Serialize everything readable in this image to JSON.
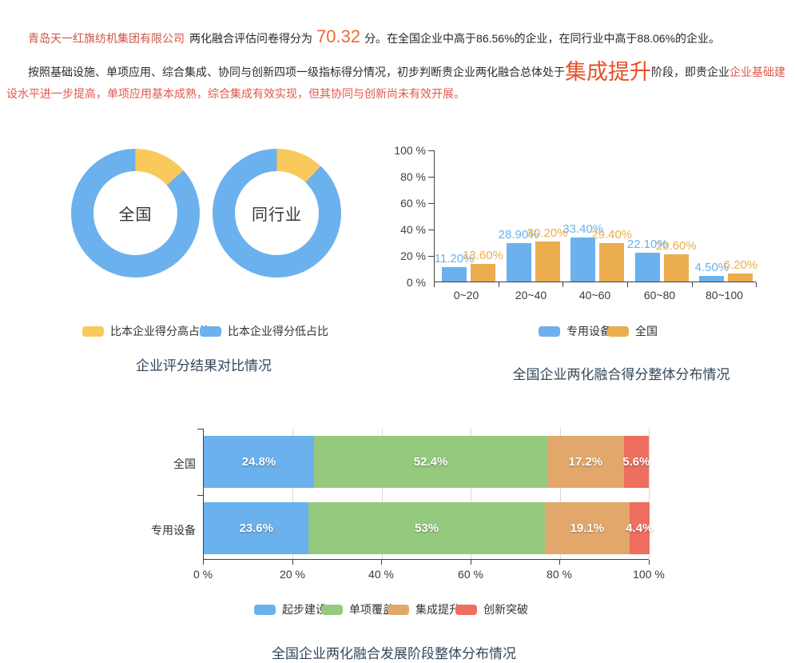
{
  "header": {
    "company": "青岛天一红旗纺机集团有限公司",
    "score_prefix": "两化融合评估问卷得分为",
    "score": "70.32",
    "score_unit": "分。",
    "score_suffix": "在全国企业中高于86.56%的企业，在同行业中高于88.06%的企业。",
    "para_black": "按照基础设施、单项应用、综合集成、协同与创新四项一级指标得分情况，初步判断贵企业两化融合总体处于",
    "para_stage": "集成提升",
    "para_mid": "阶段，即贵企业",
    "para_red": "企业基础建设水平进一步提高，单项应用基本成熟，综合集成有效实现，但其协同与创新尚未有效开展。"
  },
  "chart_data": [
    {
      "type": "pie",
      "title": "企业评分结果对比情况",
      "donuts": [
        {
          "label": "全国",
          "slices": [
            {
              "name": "比本企业得分高占比",
              "value": 13.44
            },
            {
              "name": "比本企业得分低占比",
              "value": 86.56
            }
          ]
        },
        {
          "label": "同行业",
          "slices": [
            {
              "name": "比本企业得分高占比",
              "value": 11.94
            },
            {
              "name": "比本企业得分低占比",
              "value": 88.06
            }
          ]
        }
      ],
      "legend": [
        {
          "name": "比本企业得分高占比",
          "color": "#fac95c"
        },
        {
          "name": "比本企业得分低占比",
          "color": "#6ab1ee"
        }
      ],
      "legend_position": "bottom"
    },
    {
      "type": "bar",
      "title": "全国企业两化融合得分整体分布情况",
      "categories": [
        "0~20",
        "20~40",
        "40~60",
        "60~80",
        "80~100"
      ],
      "series": [
        {
          "name": "专用设备",
          "color": "#6ab1ee",
          "values": [
            11.2,
            28.9,
            33.4,
            22.1,
            4.5
          ],
          "labels": [
            "11.20%",
            "28.90%",
            "33.40%",
            "22.10%",
            "4.50%"
          ]
        },
        {
          "name": "全国",
          "color": "#ebad4d",
          "values": [
            13.6,
            30.2,
            29.4,
            20.6,
            6.2
          ],
          "labels": [
            "13.60%",
            "30.20%",
            "29.40%",
            "20.60%",
            "6.20%"
          ]
        }
      ],
      "yticks": [
        "0 %",
        "20 %",
        "40 %",
        "60 %",
        "80 %",
        "100 %"
      ],
      "ylim": [
        0,
        100
      ],
      "grid": false,
      "legend_position": "bottom"
    },
    {
      "type": "stacked-horizontal-bar",
      "title": "全国企业两化融合发展阶段整体分布情况",
      "categories": [
        "全国",
        "专用设备"
      ],
      "series": [
        {
          "name": "起步建设",
          "color": "#6ab1ee",
          "values": [
            24.8,
            23.6
          ],
          "labels": [
            "24.8%",
            "23.6%"
          ]
        },
        {
          "name": "单项覆盖",
          "color": "#95c97e",
          "values": [
            52.4,
            53.0
          ],
          "labels": [
            "52.4%",
            "53%"
          ]
        },
        {
          "name": "集成提升",
          "color": "#e2a86b",
          "values": [
            17.2,
            19.1
          ],
          "labels": [
            "17.2%",
            "19.1%"
          ]
        },
        {
          "name": "创新突破",
          "color": "#ee6e5f",
          "values": [
            5.6,
            4.4
          ],
          "labels": [
            "5.6%",
            "4.4%"
          ]
        }
      ],
      "xticks": [
        "0 %",
        "20 %",
        "40 %",
        "60 %",
        "80 %",
        "100 %"
      ],
      "xlim": [
        0,
        100
      ],
      "grid": true,
      "legend_position": "bottom"
    }
  ]
}
